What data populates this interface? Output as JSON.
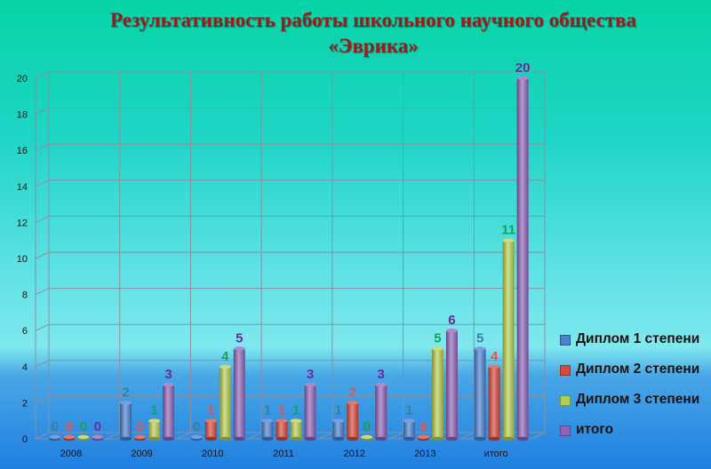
{
  "chart_data": {
    "type": "bar",
    "title": "Результативность   работы школьного научного общества\n«Эврика»",
    "categories": [
      "2008",
      "2009",
      "2010",
      "2011",
      "2012",
      "2013",
      "итого"
    ],
    "series": [
      {
        "name": "Диплом 1 степени",
        "values": [
          0,
          2,
          0,
          1,
          1,
          1,
          5
        ],
        "color": "#4a7fd4",
        "label_color": "#3e7d9a"
      },
      {
        "name": "Диплом 2 степени",
        "values": [
          0,
          0,
          1,
          1,
          2,
          0,
          4
        ],
        "color": "#d84a3b",
        "label_color": "#f0504a"
      },
      {
        "name": "Диплом 3 степени",
        "values": [
          0,
          1,
          4,
          1,
          0,
          5,
          11
        ],
        "color": "#b7cf4e",
        "label_color": "#12a35a"
      },
      {
        "name": "итого",
        "values": [
          0,
          3,
          5,
          3,
          3,
          6,
          20
        ],
        "color": "#8e63b8",
        "label_color": "#6a2aa0"
      }
    ],
    "ylim": [
      0,
      20
    ],
    "yticks": [
      0,
      2,
      4,
      6,
      8,
      10,
      12,
      14,
      16,
      18,
      20
    ],
    "grid": true,
    "legend": "right"
  }
}
